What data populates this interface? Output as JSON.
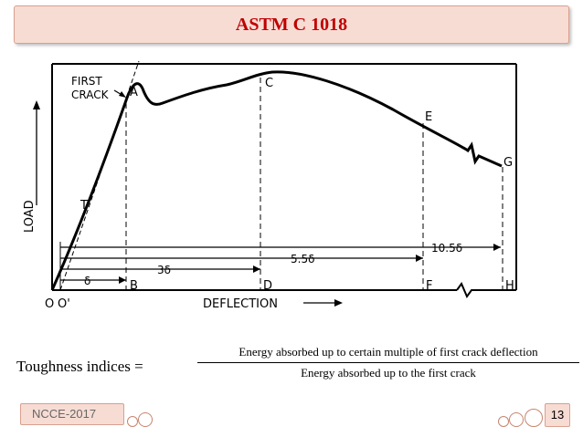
{
  "title": "ASTM C 1018",
  "figure": {
    "labels": {
      "first_crack": [
        "FIRST",
        "CRACK"
      ],
      "load": "LOAD",
      "deflection": "DEFLECTION",
      "point_a": "A",
      "point_c": "C",
      "point_e": "E",
      "point_g": "G",
      "point_t": "T",
      "origin": "O",
      "origin_prime": "O'",
      "point_b": "B",
      "point_d": "D",
      "point_f": "F",
      "point_h": "H",
      "dim_delta": "δ",
      "dim_3delta": "3δ",
      "dim_5_5delta": "5.5δ",
      "dim_10_5delta": "10.5δ"
    }
  },
  "formula": {
    "lhs": "Toughness indices =",
    "numerator": "Energy absorbed up to certain multiple of first crack deflection",
    "denominator": "Energy absorbed up to the first crack"
  },
  "footer": {
    "left_label": "NCCE-2017",
    "page_number": "13"
  }
}
